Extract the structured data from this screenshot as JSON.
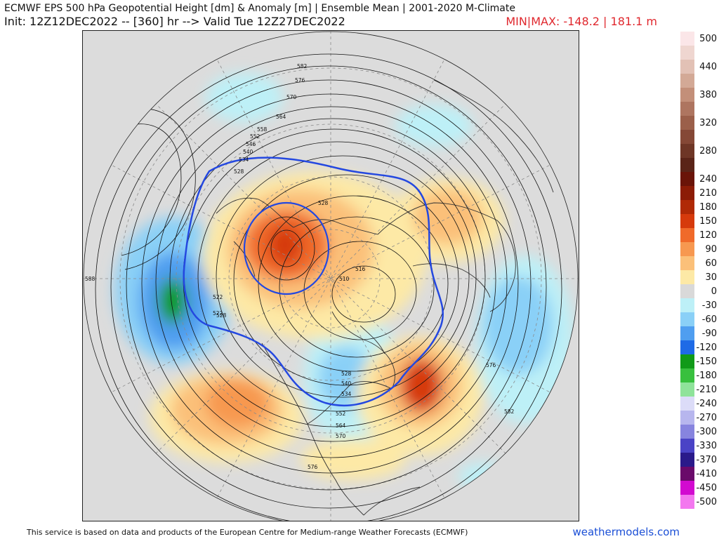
{
  "header": {
    "title": "ECMWF EPS 500 hPa Geopotential Height [dm] & Anomaly [m] | Ensemble Mean | 2001-2020 M-Climate",
    "subtitle": "Init: 12Z12DEC2022 -- [360] hr --> Valid Tue 12Z27DEC2022",
    "minmax": "MIN|MAX: -148.2 | 181.1 m"
  },
  "colorbar": {
    "unit": "m",
    "levels": [
      {
        "label": "500",
        "color": "#fbe6e8"
      },
      {
        "label": "",
        "color": "#efd6d0"
      },
      {
        "label": "440",
        "color": "#e2c1b5"
      },
      {
        "label": "",
        "color": "#d3a996"
      },
      {
        "label": "380",
        "color": "#c38f79"
      },
      {
        "label": "",
        "color": "#ae7560"
      },
      {
        "label": "320",
        "color": "#9b5f4a"
      },
      {
        "label": "",
        "color": "#854836"
      },
      {
        "label": "280",
        "color": "#6e3626"
      },
      {
        "label": "",
        "color": "#5a2418"
      },
      {
        "label": "240",
        "color": "#6a1408"
      },
      {
        "label": "210",
        "color": "#8c1c06"
      },
      {
        "label": "180",
        "color": "#b02a06"
      },
      {
        "label": "150",
        "color": "#d63a0c"
      },
      {
        "label": "120",
        "color": "#f06a2a"
      },
      {
        "label": "90",
        "color": "#f79850"
      },
      {
        "label": "60",
        "color": "#fbc079"
      },
      {
        "label": "30",
        "color": "#fde9a6"
      },
      {
        "label": "0",
        "color": "#d9d9d9"
      },
      {
        "label": "-30",
        "color": "#bdf0f7"
      },
      {
        "label": "-60",
        "color": "#8ad0f7"
      },
      {
        "label": "-90",
        "color": "#4f9ef0"
      },
      {
        "label": "-120",
        "color": "#1e6ae6"
      },
      {
        "label": "-150",
        "color": "#109a18"
      },
      {
        "label": "-180",
        "color": "#38c03e"
      },
      {
        "label": "-210",
        "color": "#8fe39a"
      },
      {
        "label": "-240",
        "color": "#dcdcf8"
      },
      {
        "label": "-270",
        "color": "#b7b6ee"
      },
      {
        "label": "-300",
        "color": "#8784df"
      },
      {
        "label": "-330",
        "color": "#4a43c6"
      },
      {
        "label": "-370",
        "color": "#2a1a8a"
      },
      {
        "label": "-410",
        "color": "#6a0a6a"
      },
      {
        "label": "-450",
        "color": "#d20ad0"
      },
      {
        "label": "-500",
        "color": "#f377ef"
      }
    ]
  },
  "map": {
    "contour_labels": [
      "582",
      "576",
      "570",
      "564",
      "558",
      "552",
      "546",
      "540",
      "534",
      "528",
      "528",
      "522",
      "522",
      "528",
      "516",
      "510",
      "576",
      "582",
      "588",
      "576",
      "528",
      "540",
      "534",
      "552",
      "564",
      "570"
    ],
    "features": [
      "anomaly-shading",
      "height-contours",
      "coastlines",
      "graticule",
      "540dm-line"
    ]
  },
  "footer": {
    "credit": "This service is based on data and products of the European Centre for Medium-range Weather Forecasts (ECMWF)",
    "brand": "weathermodels.com"
  }
}
